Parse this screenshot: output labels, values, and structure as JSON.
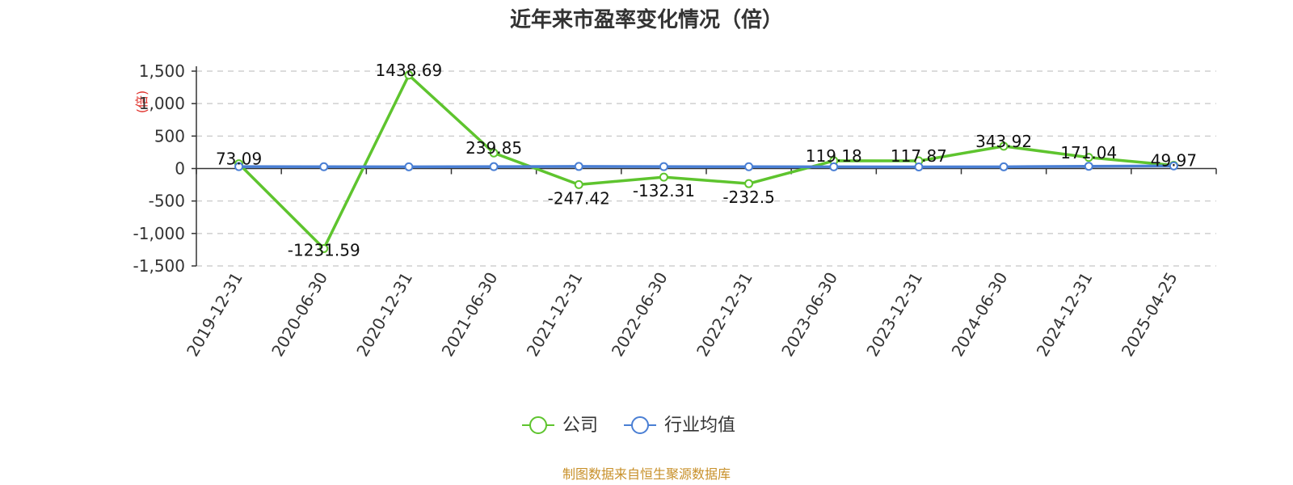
{
  "chart_data": {
    "type": "line",
    "title": "近年来市盈率变化情况（倍）",
    "ylabel": "(倍)",
    "categories": [
      "2019-12-31",
      "2020-06-30",
      "2020-12-31",
      "2021-06-30",
      "2021-12-31",
      "2022-06-30",
      "2022-12-31",
      "2023-06-30",
      "2023-12-31",
      "2024-06-30",
      "2024-12-31",
      "2025-04-25"
    ],
    "ylim": [
      -1500,
      1500
    ],
    "yticks": [
      1500,
      1000,
      500,
      0,
      -500,
      -1000,
      -1500
    ],
    "ytick_labels": [
      "1,500",
      "1,000",
      "500",
      "0",
      "-500",
      "-1,000",
      "-1,500"
    ],
    "grid": true,
    "legend_position": "bottom",
    "series": [
      {
        "name": "公司",
        "color": "#5ec42e",
        "values": [
          73.09,
          -1231.59,
          1438.69,
          239.85,
          -247.42,
          -132.31,
          -232.5,
          119.18,
          117.87,
          343.92,
          171.04,
          49.97
        ],
        "labels": [
          "73.09",
          "-1231.59",
          "1438.69",
          "239.85",
          "-247.42",
          "-132.31",
          "-232.5",
          "119.18",
          "117.87",
          "343.92",
          "171.04",
          "49.97"
        ]
      },
      {
        "name": "行业均值",
        "color": "#4a7fd4",
        "values": [
          30,
          28,
          27,
          29,
          32,
          30,
          28,
          26,
          25,
          27,
          35,
          40
        ]
      }
    ]
  },
  "footer": {
    "source": "制图数据来自恒生聚源数据库"
  }
}
